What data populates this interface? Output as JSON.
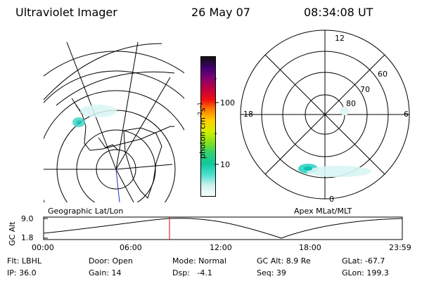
{
  "header": {
    "title": "Ultraviolet Imager",
    "date": "26 May 07",
    "time": "08:34:08 UT"
  },
  "colorbar": {
    "unit_label": "photon cm",
    "unit_sup1": "-2",
    "unit_mid": "s",
    "unit_sup2": "-1",
    "tick_labels": [
      "100",
      "10"
    ],
    "colors": [
      "#ffffff",
      "#c8f0f0",
      "#50e0d0",
      "#10c8a0",
      "#30d070",
      "#80e020",
      "#d0f000",
      "#ffd000",
      "#ff8000",
      "#f01010",
      "#c00040",
      "#800070",
      "#400070",
      "#101010"
    ]
  },
  "left_map": {
    "caption": "Geographic Lat/Lon"
  },
  "right_map": {
    "caption": "Apex MLat/MLT",
    "mlt_labels": {
      "top": "12",
      "left": "18",
      "right": "6",
      "bottom": "0"
    },
    "lat_labels": [
      "60",
      "70",
      "80"
    ]
  },
  "altitude_plot": {
    "axis_title": "GC Alt",
    "y_labels": [
      "9.0",
      "1.8"
    ],
    "x_labels": [
      "00:00",
      "06:00",
      "12:00",
      "18:00",
      "23:59"
    ],
    "marker_color": "#e00000"
  },
  "info": {
    "flt": "Flt: LBHL",
    "door": "Door: Open",
    "mode": "Mode: Normal",
    "gc_alt": "GC Alt: 8.9 Re",
    "glat": "GLat: -67.7",
    "ip": "IP: 36.0",
    "gain": "Gain: 14",
    "dsp": "Dsp:   -4.1",
    "seq": "Seq: 39",
    "glon": "GLon: 199.3"
  }
}
